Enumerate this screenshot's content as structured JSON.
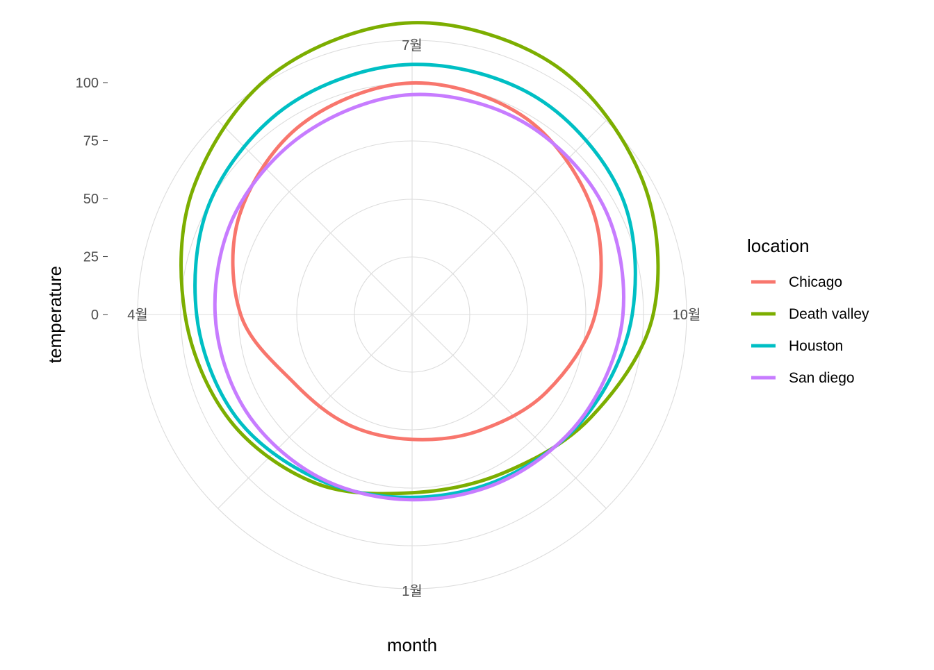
{
  "chart_data": {
    "type": "line",
    "coord": "polar",
    "xlabel": "month",
    "ylabel": "temperature",
    "ylim": [
      0,
      100
    ],
    "y_ticks": [
      0,
      25,
      50,
      75,
      100
    ],
    "month_labels": [
      {
        "month": 1,
        "label": "1월"
      },
      {
        "month": 4,
        "label": "4월"
      },
      {
        "month": 7,
        "label": "7월"
      },
      {
        "month": 10,
        "label": "10월"
      }
    ],
    "legend": {
      "title": "location",
      "placement": "right"
    },
    "series": [
      {
        "name": "Chicago",
        "color": "#F8766D",
        "x": [
          1,
          2,
          3,
          4,
          5,
          6,
          7,
          8,
          9,
          10,
          11,
          12
        ],
        "values": [
          29,
          30,
          34,
          49,
          61,
          70,
          75,
          73,
          65,
          54,
          42,
          33
        ]
      },
      {
        "name": "Death valley",
        "color": "#7CAE00",
        "x": [
          1,
          2,
          3,
          4,
          5,
          6,
          7,
          8,
          9,
          10,
          11,
          12
        ],
        "values": [
          52,
          59,
          66,
          73,
          84,
          95,
          101,
          99,
          90,
          79,
          64,
          54
        ]
      },
      {
        "name": "Houston",
        "color": "#00BFC4",
        "x": [
          1,
          2,
          3,
          4,
          5,
          6,
          7,
          8,
          9,
          10,
          11,
          12
        ],
        "values": [
          54,
          57,
          63,
          68,
          75,
          80,
          83,
          83,
          79,
          70,
          62,
          56
        ]
      },
      {
        "name": "San diego",
        "color": "#C77CFF",
        "x": [
          1,
          2,
          3,
          4,
          5,
          6,
          7,
          8,
          9,
          10,
          11,
          12
        ],
        "values": [
          55,
          56,
          58,
          60,
          63,
          66,
          70,
          71,
          70,
          66,
          61,
          57
        ]
      }
    ]
  }
}
